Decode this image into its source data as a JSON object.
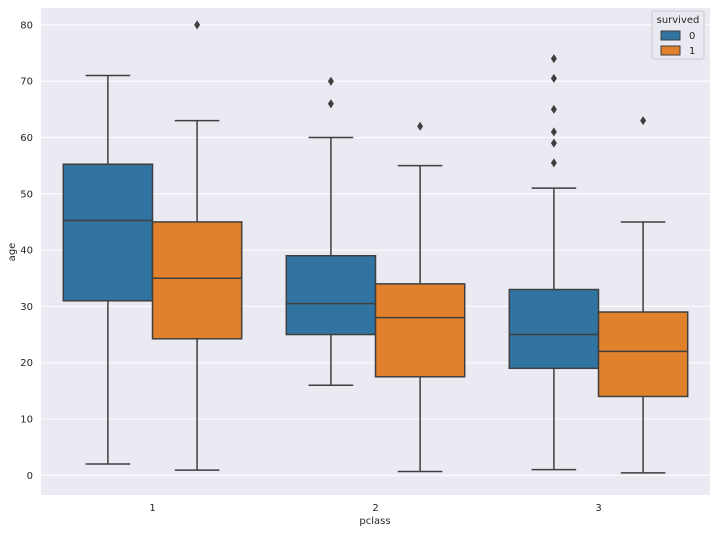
{
  "chart_data": {
    "type": "boxplot",
    "xlabel": "pclass",
    "ylabel": "age",
    "categories": [
      "1",
      "2",
      "3"
    ],
    "ylim": [
      -3.5,
      83
    ],
    "yticks": [
      0,
      10,
      20,
      30,
      40,
      50,
      60,
      70,
      80
    ],
    "grid": true,
    "legend": {
      "title": "survived",
      "placement": "top-right"
    },
    "series": [
      {
        "name": "0",
        "color": "#3274a1",
        "boxes": [
          {
            "category": "1",
            "whisker_low": 2,
            "q1": 31,
            "median": 45.25,
            "q3": 55.25,
            "whisker_high": 71,
            "outliers": []
          },
          {
            "category": "2",
            "whisker_low": 16,
            "q1": 25,
            "median": 30.5,
            "q3": 39,
            "whisker_high": 60,
            "outliers": [
              66,
              70
            ]
          },
          {
            "category": "3",
            "whisker_low": 1,
            "q1": 19,
            "median": 25,
            "q3": 33,
            "whisker_high": 51,
            "outliers": [
              55.5,
              59,
              61,
              65,
              70.5,
              74
            ]
          }
        ]
      },
      {
        "name": "1",
        "color": "#e1812c",
        "boxes": [
          {
            "category": "1",
            "whisker_low": 0.92,
            "q1": 24.25,
            "median": 35,
            "q3": 45,
            "whisker_high": 63,
            "outliers": [
              80
            ]
          },
          {
            "category": "2",
            "whisker_low": 0.67,
            "q1": 17.5,
            "median": 28,
            "q3": 34,
            "whisker_high": 55,
            "outliers": [
              62
            ]
          },
          {
            "category": "3",
            "whisker_low": 0.42,
            "q1": 14,
            "median": 22,
            "q3": 29,
            "whisker_high": 45,
            "outliers": [
              63
            ]
          }
        ]
      }
    ]
  }
}
